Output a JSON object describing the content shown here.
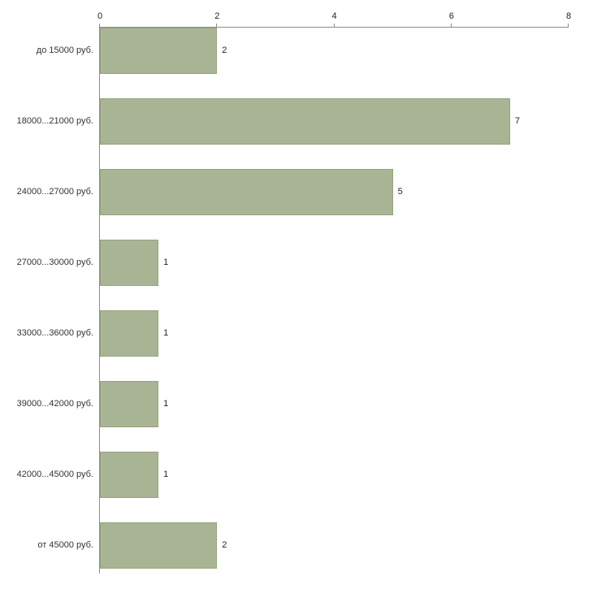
{
  "chart_data": {
    "type": "bar",
    "orientation": "horizontal",
    "title": "",
    "xlabel": "",
    "ylabel": "",
    "categories": [
      "до 15000 руб.",
      "18000...21000 руб.",
      "24000...27000 руб.",
      "27000...30000 руб.",
      "33000...36000 руб.",
      "39000...42000 руб.",
      "42000...45000 руб.",
      "от 45000 руб."
    ],
    "values": [
      2,
      7,
      5,
      1,
      1,
      1,
      1,
      2
    ],
    "xlim": [
      0,
      8
    ],
    "x_ticks": [
      0,
      2,
      4,
      6,
      8
    ],
    "grid": false,
    "legend": false,
    "colors": {
      "bar_fill": "#a8b494",
      "bar_border": "#96a37e",
      "axis": "#8c8c8c",
      "text": "#333333",
      "background": "#ffffff"
    }
  }
}
